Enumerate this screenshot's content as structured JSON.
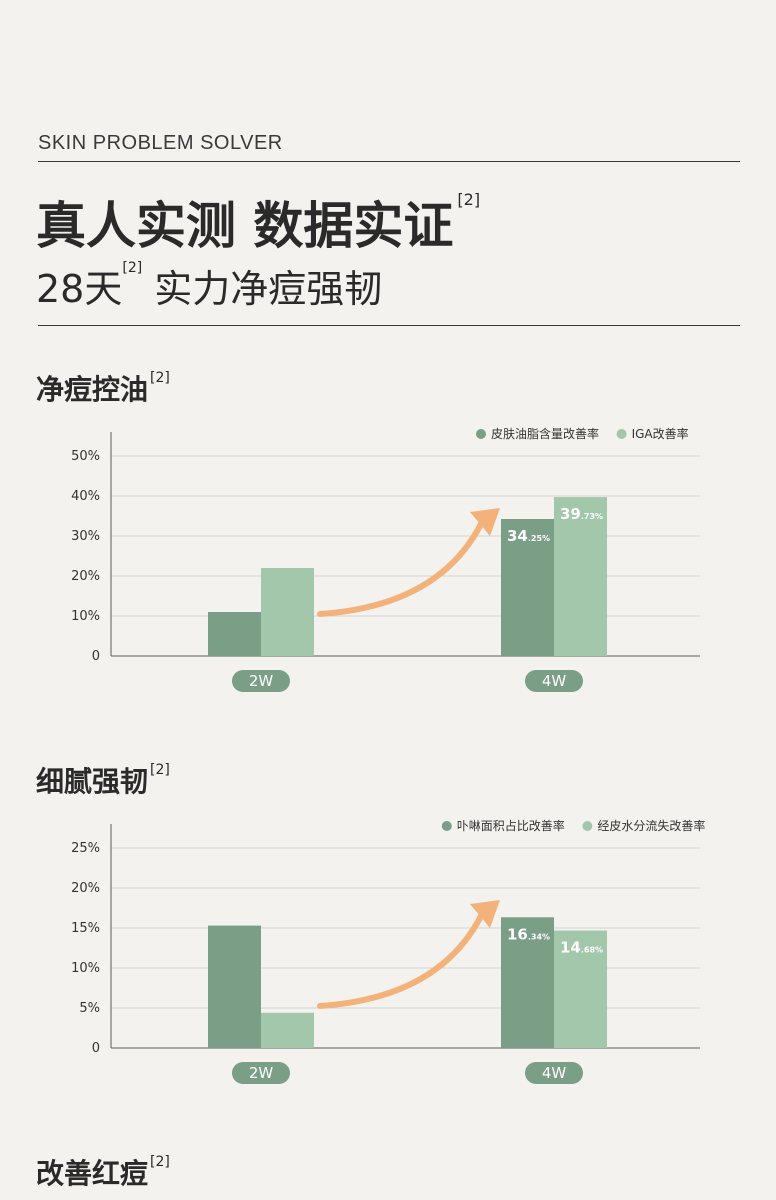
{
  "header": {
    "eyebrow": "SKIN PROBLEM SOLVER",
    "headline": "真人实测 数据实证",
    "headline_ref": "[2]",
    "sub_days": "28天",
    "sub_ref": "[2]",
    "sub_rest": "实力净痘强韧"
  },
  "colors": {
    "dark_bar": "#7a9e86",
    "light_bar": "#a3c7ab",
    "arrow": "#f3b27a",
    "grid": "#d4d4d0",
    "axis": "#5a5a5a"
  },
  "sections": [
    {
      "title": "净痘控油",
      "ref": "[2]",
      "chart_data": {
        "type": "bar",
        "categories": [
          "2W",
          "4W"
        ],
        "series": [
          {
            "name": "皮肤油脂含量改善率",
            "color": "#7a9e86",
            "values": [
              11,
              34.25
            ],
            "labels": [
              null,
              {
                "main": "34",
                "dec": ".25%"
              }
            ]
          },
          {
            "name": "IGA改善率",
            "color": "#a3c7ab",
            "values": [
              22,
              39.73
            ],
            "labels": [
              null,
              {
                "main": "39",
                "dec": ".73%"
              }
            ]
          }
        ],
        "yticks": [
          "50%",
          "40%",
          "30%",
          "20%",
          "10%",
          "0"
        ],
        "ylim": [
          0,
          50
        ],
        "grid": true,
        "legend": "top-right"
      }
    },
    {
      "title": "细腻强韧",
      "ref": "[2]",
      "chart_data": {
        "type": "bar",
        "categories": [
          "2W",
          "4W"
        ],
        "series": [
          {
            "name": "卟啉面积占比改善率",
            "color": "#7a9e86",
            "values": [
              15.3,
              16.34
            ],
            "labels": [
              null,
              {
                "main": "16",
                "dec": ".34%"
              }
            ]
          },
          {
            "name": "经皮水分流失改善率",
            "color": "#a3c7ab",
            "values": [
              4.4,
              14.68
            ],
            "labels": [
              null,
              {
                "main": "14",
                "dec": ".68%"
              }
            ]
          }
        ],
        "yticks": [
          "25%",
          "20%",
          "15%",
          "10%",
          "5%",
          "0"
        ],
        "ylim": [
          0,
          25
        ],
        "grid": true,
        "legend": "top-right"
      }
    },
    {
      "title": "改善红痘",
      "ref": "[2]"
    }
  ]
}
